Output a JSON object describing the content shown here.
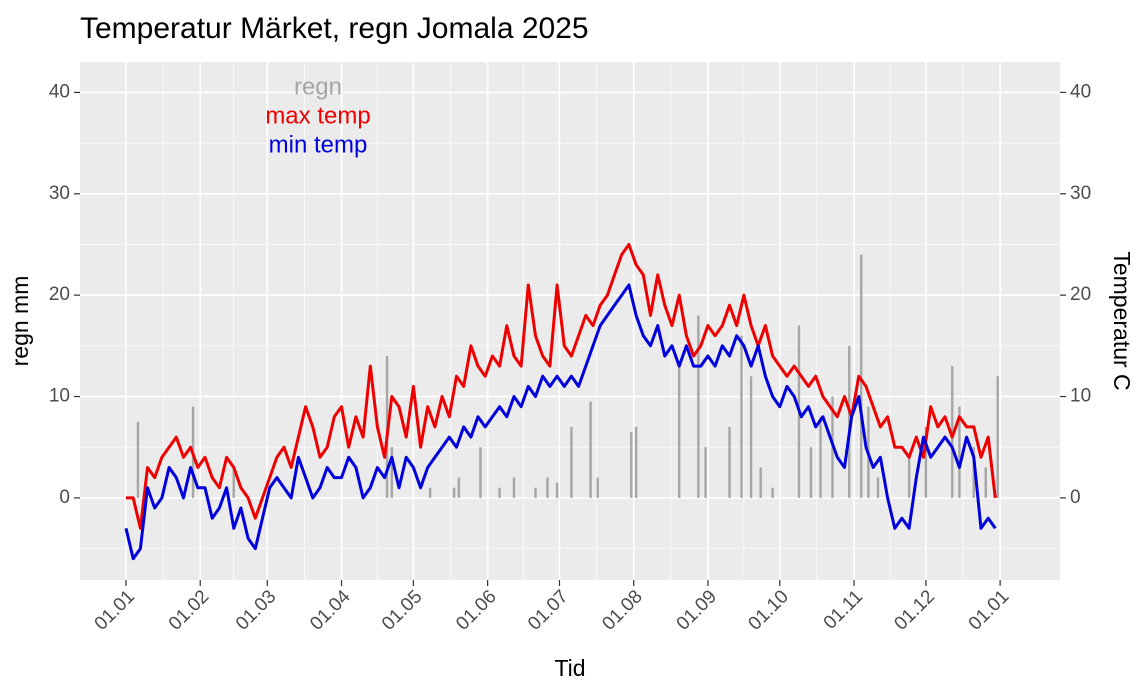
{
  "chart_data": {
    "type": "bar-line",
    "title": "Temperatur Märket, regn Jomala 2025",
    "x_label": "Tid",
    "y_label": "regn mm",
    "y2_label": "Temperatur C",
    "xlim": [
      -19.2,
      390
    ],
    "xticks": [
      {
        "value": 0,
        "label": "01.01"
      },
      {
        "value": 31,
        "label": "01.02"
      },
      {
        "value": 59,
        "label": "01.03"
      },
      {
        "value": 90,
        "label": "01.04"
      },
      {
        "value": 120,
        "label": "01.05"
      },
      {
        "value": 151,
        "label": "01.06"
      },
      {
        "value": 181,
        "label": "01.07"
      },
      {
        "value": 212,
        "label": "01.08"
      },
      {
        "value": 243,
        "label": "01.09"
      },
      {
        "value": 273,
        "label": "01.10"
      },
      {
        "value": 304,
        "label": "01.11"
      },
      {
        "value": 334,
        "label": "01.12"
      },
      {
        "value": 365,
        "label": "01.01"
      }
    ],
    "ylim": [
      -8.1,
      43
    ],
    "yticks": [
      0,
      10,
      20,
      30,
      40
    ],
    "y2lim": [
      -8.1,
      43
    ],
    "y2ticks": [
      0,
      10,
      20,
      30,
      40
    ],
    "grid": true,
    "x": [
      0,
      3,
      6,
      9,
      12,
      15,
      18,
      21,
      24,
      27,
      30,
      33,
      36,
      39,
      42,
      45,
      48,
      51,
      54,
      57,
      60,
      63,
      66,
      69,
      72,
      75,
      78,
      81,
      84,
      87,
      90,
      93,
      96,
      99,
      102,
      105,
      108,
      111,
      114,
      117,
      120,
      123,
      126,
      129,
      132,
      135,
      138,
      141,
      144,
      147,
      150,
      153,
      156,
      159,
      162,
      165,
      168,
      171,
      174,
      177,
      180,
      183,
      186,
      189,
      192,
      195,
      198,
      201,
      204,
      207,
      210,
      213,
      216,
      219,
      222,
      225,
      228,
      231,
      234,
      237,
      240,
      243,
      246,
      249,
      252,
      255,
      258,
      261,
      264,
      267,
      270,
      273,
      276,
      279,
      282,
      285,
      288,
      291,
      294,
      297,
      300,
      303,
      306,
      309,
      312,
      315,
      318,
      321,
      324,
      327,
      330,
      333,
      336,
      339,
      342,
      345,
      348,
      351,
      354,
      357,
      360,
      363
    ],
    "series": [
      {
        "name": "regn",
        "color": "#a6a6a6",
        "type": "bar",
        "x": [
          5,
          28,
          45,
          109,
          111,
          127,
          137,
          139,
          148,
          156,
          162,
          171,
          176,
          180,
          186,
          194,
          197,
          211,
          213,
          231,
          239,
          242,
          252,
          257,
          261,
          265,
          270,
          281,
          286,
          290,
          295,
          302,
          307,
          310,
          314,
          327,
          334,
          345,
          348,
          354,
          359,
          364
        ],
        "values": [
          7.5,
          9,
          2.8,
          14,
          5,
          1,
          1,
          2,
          5,
          1,
          2,
          1,
          2,
          1.5,
          7,
          9.5,
          2,
          6.5,
          7,
          13,
          18,
          5,
          7,
          16,
          12,
          3,
          1,
          17,
          5,
          8,
          10,
          15,
          24,
          9,
          2,
          4,
          7,
          13,
          9,
          5,
          3,
          12
        ]
      },
      {
        "name": "max temp",
        "color": "#ee0000",
        "type": "line",
        "axis": "y2",
        "values": [
          0,
          0,
          -3,
          3,
          2,
          4,
          5,
          6,
          4,
          5,
          3,
          4,
          2,
          1,
          4,
          3,
          1,
          0,
          -2,
          0,
          2,
          4,
          5,
          3,
          6,
          9,
          7,
          4,
          5,
          8,
          9,
          5,
          8,
          6,
          13,
          7,
          4,
          10,
          9,
          6,
          11,
          5,
          9,
          7,
          10,
          8,
          12,
          11,
          15,
          13,
          12,
          14,
          13,
          17,
          14,
          13,
          21,
          16,
          14,
          13,
          21,
          15,
          14,
          16,
          18,
          17,
          19,
          20,
          22,
          24,
          25,
          23,
          22,
          18,
          22,
          19,
          17,
          20,
          16,
          14,
          15,
          17,
          16,
          17,
          19,
          17,
          20,
          17,
          15,
          17,
          14,
          13,
          12,
          13,
          12,
          11,
          12,
          10,
          9,
          8,
          10,
          8,
          12,
          11,
          9,
          7,
          8,
          5,
          5,
          4,
          6,
          4,
          9,
          7,
          8,
          6,
          8,
          7,
          7,
          4,
          6,
          0
        ]
      },
      {
        "name": "min temp",
        "color": "#0000dd",
        "type": "line",
        "axis": "y2",
        "values": [
          -3,
          -6,
          -5,
          1,
          -1,
          0,
          3,
          2,
          0,
          3,
          1,
          1,
          -2,
          -1,
          1,
          -3,
          -1,
          -4,
          -5,
          -2,
          1,
          2,
          1,
          0,
          4,
          2,
          0,
          1,
          3,
          2,
          2,
          4,
          3,
          0,
          1,
          3,
          2,
          4,
          1,
          4,
          3,
          1,
          3,
          4,
          5,
          6,
          5,
          7,
          6,
          8,
          7,
          8,
          9,
          8,
          10,
          9,
          11,
          10,
          12,
          11,
          12,
          11,
          12,
          11,
          13,
          15,
          17,
          18,
          19,
          20,
          21,
          18,
          16,
          15,
          17,
          14,
          15,
          13,
          15,
          13,
          13,
          14,
          13,
          15,
          14,
          16,
          15,
          13,
          15,
          12,
          10,
          9,
          11,
          10,
          8,
          9,
          7,
          8,
          6,
          4,
          3,
          8,
          10,
          5,
          3,
          4,
          0,
          -3,
          -2,
          -3,
          2,
          6,
          4,
          5,
          6,
          5,
          3,
          6,
          4,
          -3,
          -2,
          -3
        ]
      }
    ]
  }
}
